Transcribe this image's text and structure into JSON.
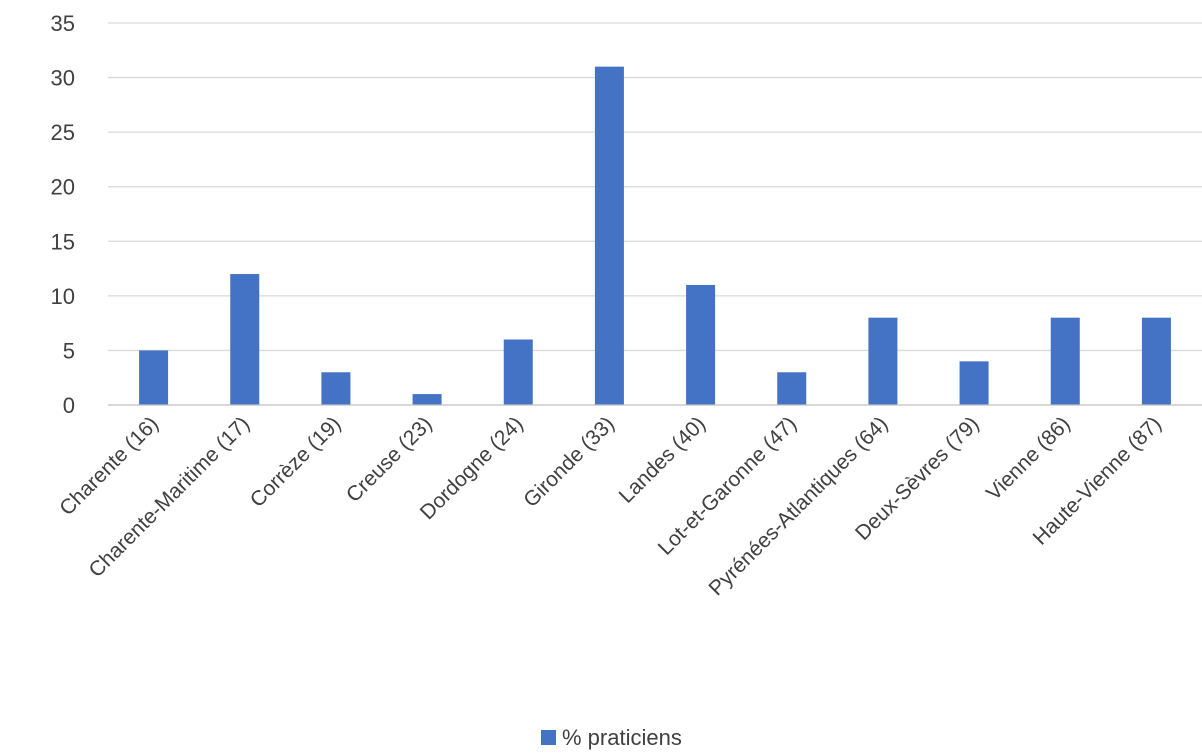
{
  "chart_data": {
    "type": "bar",
    "categories": [
      "Charente (16)",
      "Charente-Maritime (17)",
      "Corrèze (19)",
      "Creuse (23)",
      "Dordogne (24)",
      "Gironde (33)",
      "Landes (40)",
      "Lot-et-Garonne (47)",
      "Pyrénées-Atlantiques (64)",
      "Deux-Sèvres (79)",
      "Vienne (86)",
      "Haute-Vienne (87)"
    ],
    "series": [
      {
        "name": "% praticiens",
        "values": [
          5,
          12,
          3,
          1,
          6,
          31,
          11,
          3,
          8,
          4,
          8,
          8
        ],
        "color": "#4472c4"
      }
    ],
    "yticks": [
      0,
      5,
      10,
      15,
      20,
      25,
      30,
      35
    ],
    "ylim": [
      0,
      35
    ],
    "grid": true,
    "legend_position": "bottom",
    "x_label_rotation": "diagonal"
  }
}
